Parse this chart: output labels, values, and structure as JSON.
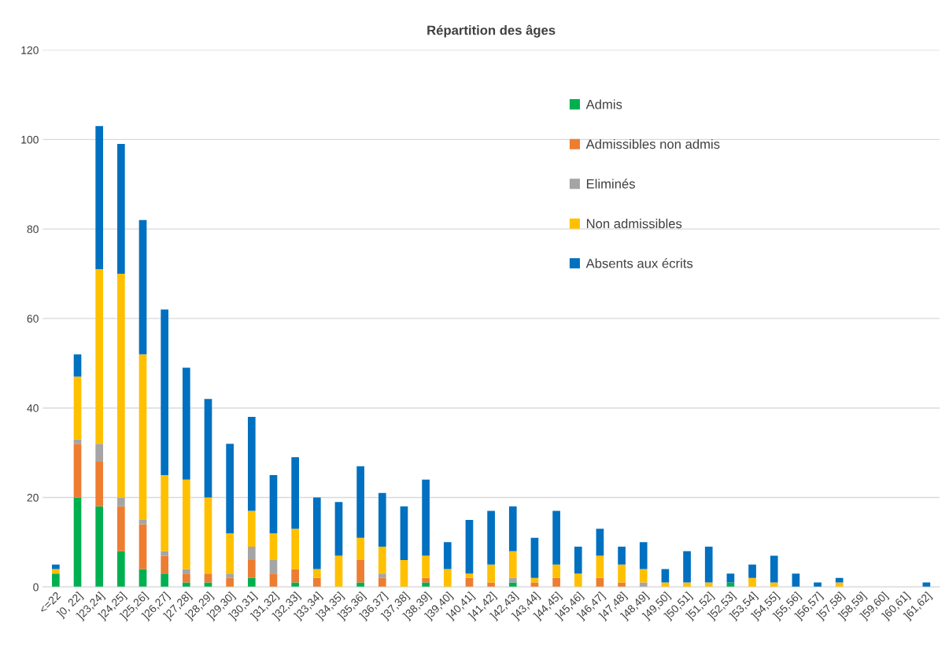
{
  "chart_data": {
    "type": "bar",
    "title": "Répartition des âges",
    "stacked": true,
    "categories": [
      "<=22",
      "]0, 22]",
      "]23,24]",
      "]24,25]",
      "]25,26]",
      "]26,27]",
      "]27,28]",
      "]28,29]",
      "]29,30]",
      "]30,31]",
      "]31,32]",
      "]32,33]",
      "]33,34]",
      "]34,35]",
      "]35,36]",
      "]36,37]",
      "]37,38]",
      "]38,39]",
      "]39,40]",
      "]40,41]",
      "]41,42]",
      "]42,43]",
      "]43,44]",
      "]44,45]",
      "]45,46]",
      "]46,47]",
      "]47,48]",
      "]48,49]",
      "]49,50]",
      "]50,51]",
      "]51,52]",
      "]52,53]",
      "]53,54]",
      "]54,55]",
      "]55,56]",
      "]56,57]",
      "]57,58]",
      "]58,59]",
      "]59,60]",
      "]60,61]",
      "]61,62]"
    ],
    "series": [
      {
        "name": "Admis",
        "color": "#00b050",
        "values": [
          3,
          20,
          18,
          8,
          4,
          3,
          1,
          1,
          0,
          2,
          0,
          1,
          0,
          0,
          1,
          0,
          0,
          1,
          0,
          0,
          0,
          1,
          0,
          0,
          0,
          0,
          0,
          0,
          0,
          0,
          0,
          1,
          0,
          0,
          0,
          0,
          0,
          0,
          0,
          0,
          0
        ]
      },
      {
        "name": "Admissibles non admis",
        "color": "#ed7d31",
        "values": [
          0,
          12,
          10,
          10,
          10,
          4,
          2,
          2,
          2,
          4,
          3,
          3,
          2,
          0,
          5,
          2,
          0,
          1,
          0,
          2,
          1,
          0,
          1,
          2,
          0,
          2,
          1,
          0,
          0,
          0,
          0,
          0,
          0,
          0,
          0,
          0,
          0,
          0,
          0,
          0,
          0
        ]
      },
      {
        "name": "Eliminés",
        "color": "#a5a5a5",
        "values": [
          0,
          1,
          4,
          2,
          1,
          1,
          1,
          0,
          1,
          3,
          3,
          0,
          0,
          0,
          0,
          1,
          0,
          0,
          0,
          0,
          0,
          1,
          0,
          0,
          0,
          0,
          0,
          1,
          0,
          0,
          0,
          0,
          0,
          0,
          0,
          0,
          0,
          0,
          0,
          0,
          0
        ]
      },
      {
        "name": "Non admissibles",
        "color": "#ffc000",
        "values": [
          1,
          14,
          39,
          50,
          37,
          17,
          20,
          17,
          9,
          8,
          6,
          9,
          2,
          7,
          5,
          6,
          6,
          5,
          4,
          1,
          4,
          6,
          1,
          3,
          3,
          5,
          4,
          3,
          1,
          1,
          1,
          0,
          2,
          1,
          0,
          0,
          1,
          0,
          0,
          0,
          0
        ]
      },
      {
        "name": "Absents aux écrits",
        "color": "#0070c0",
        "values": [
          1,
          5,
          32,
          29,
          30,
          37,
          25,
          22,
          20,
          21,
          13,
          16,
          16,
          12,
          16,
          12,
          12,
          17,
          6,
          12,
          12,
          10,
          9,
          12,
          6,
          6,
          4,
          6,
          3,
          7,
          8,
          2,
          3,
          6,
          3,
          1,
          1,
          0,
          0,
          0,
          1
        ]
      }
    ],
    "ylim": [
      0,
      120
    ],
    "yticks": [
      0,
      20,
      40,
      60,
      80,
      100,
      120
    ],
    "grid": "y",
    "legend": "top right"
  }
}
